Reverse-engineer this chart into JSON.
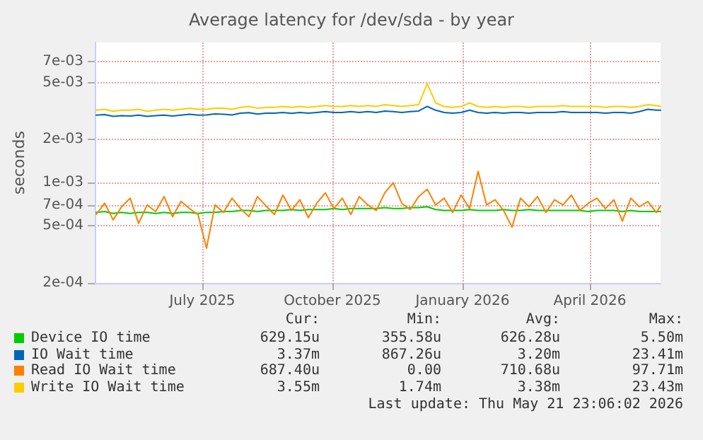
{
  "chart_data": {
    "type": "line",
    "title": "Average latency for /dev/sda - by year",
    "ylabel": "seconds",
    "x": [
      "2025-04-17",
      "2025-04-23",
      "2025-04-29",
      "2025-05-05",
      "2025-05-11",
      "2025-05-17",
      "2025-05-23",
      "2025-05-29",
      "2025-06-04",
      "2025-06-10",
      "2025-06-16",
      "2025-06-22",
      "2025-06-28",
      "2025-07-04",
      "2025-07-10",
      "2025-07-16",
      "2025-07-22",
      "2025-07-28",
      "2025-08-03",
      "2025-08-09",
      "2025-08-15",
      "2025-08-21",
      "2025-08-27",
      "2025-09-02",
      "2025-09-08",
      "2025-09-14",
      "2025-09-20",
      "2025-09-26",
      "2025-10-02",
      "2025-10-08",
      "2025-10-14",
      "2025-10-20",
      "2025-10-26",
      "2025-11-01",
      "2025-11-07",
      "2025-11-13",
      "2025-11-19",
      "2025-11-25",
      "2025-12-01",
      "2025-12-07",
      "2025-12-13",
      "2025-12-19",
      "2025-12-25",
      "2025-12-31",
      "2026-01-06",
      "2026-01-12",
      "2026-01-18",
      "2026-01-24",
      "2026-01-30",
      "2026-02-05",
      "2026-02-11",
      "2026-02-17",
      "2026-02-23",
      "2026-03-01",
      "2026-03-07",
      "2026-03-13",
      "2026-03-19",
      "2026-03-25",
      "2026-03-31",
      "2026-04-06",
      "2026-04-12",
      "2026-04-18",
      "2026-04-24",
      "2026-04-30",
      "2026-05-06",
      "2026-05-12",
      "2026-05-18",
      "2026-05-21"
    ],
    "series": [
      {
        "name": "Device IO time",
        "color": "#00cc00",
        "values": [
          0.00062,
          0.00063,
          0.00061,
          0.00062,
          0.00061,
          0.00062,
          0.00062,
          0.00061,
          0.00062,
          0.00061,
          0.00062,
          0.00062,
          0.00061,
          0.00062,
          0.00062,
          0.00063,
          0.00063,
          0.00064,
          0.00064,
          0.00063,
          0.00064,
          0.00064,
          0.00064,
          0.00065,
          0.00064,
          0.00065,
          0.00065,
          0.00065,
          0.00066,
          0.00065,
          0.00066,
          0.00066,
          0.00066,
          0.00066,
          0.00067,
          0.00066,
          0.00066,
          0.00067,
          0.00067,
          0.00068,
          0.00065,
          0.00064,
          0.00064,
          0.00064,
          0.00065,
          0.00064,
          0.00064,
          0.00064,
          0.00065,
          0.00064,
          0.00064,
          0.00065,
          0.00064,
          0.00064,
          0.00064,
          0.00064,
          0.00064,
          0.00064,
          0.00063,
          0.00064,
          0.00064,
          0.00064,
          0.00063,
          0.00064,
          0.00063,
          0.00063,
          0.00063,
          0.00063
        ]
      },
      {
        "name": "IO Wait time",
        "color": "#0066b3",
        "values": [
          0.00296,
          0.00298,
          0.0029,
          0.00293,
          0.00292,
          0.00296,
          0.0029,
          0.00293,
          0.00296,
          0.00292,
          0.00296,
          0.003,
          0.00296,
          0.00297,
          0.00302,
          0.003,
          0.00297,
          0.00305,
          0.00308,
          0.00301,
          0.00305,
          0.00305,
          0.00309,
          0.00304,
          0.00309,
          0.00305,
          0.00309,
          0.00313,
          0.00309,
          0.00309,
          0.00313,
          0.00309,
          0.00313,
          0.00309,
          0.00316,
          0.00313,
          0.00309,
          0.00313,
          0.00316,
          0.0034,
          0.0032,
          0.00309,
          0.00305,
          0.00309,
          0.0032,
          0.00309,
          0.00305,
          0.00309,
          0.00305,
          0.00309,
          0.00309,
          0.00305,
          0.00309,
          0.00309,
          0.00309,
          0.00313,
          0.00309,
          0.00309,
          0.00309,
          0.00309,
          0.00305,
          0.00309,
          0.00309,
          0.00305,
          0.00313,
          0.00325,
          0.0032,
          0.0032
        ]
      },
      {
        "name": "Read IO Wait time",
        "color": "#ff8000",
        "values": [
          0.0006,
          0.00072,
          0.00055,
          0.00068,
          0.00078,
          0.00052,
          0.0007,
          0.00063,
          0.0008,
          0.00058,
          0.00074,
          0.00066,
          0.0006,
          0.00035,
          0.0007,
          0.00062,
          0.00078,
          0.00066,
          0.00058,
          0.0008,
          0.00069,
          0.0006,
          0.00082,
          0.00064,
          0.00076,
          0.00057,
          0.00072,
          0.00085,
          0.00066,
          0.00078,
          0.0006,
          0.0008,
          0.0007,
          0.00064,
          0.00085,
          0.001,
          0.00072,
          0.00065,
          0.0008,
          0.0009,
          0.0007,
          0.00078,
          0.00062,
          0.00082,
          0.00066,
          0.0012,
          0.0007,
          0.00076,
          0.00064,
          0.00049,
          0.00078,
          0.00068,
          0.0008,
          0.00062,
          0.00076,
          0.0007,
          0.00082,
          0.00064,
          0.00072,
          0.00078,
          0.00066,
          0.00076,
          0.00054,
          0.00078,
          0.00068,
          0.00074,
          0.00062,
          0.00069
        ]
      },
      {
        "name": "Write IO Wait time",
        "color": "#ffcc00",
        "values": [
          0.0032,
          0.00325,
          0.00315,
          0.0032,
          0.0032,
          0.00325,
          0.00315,
          0.0032,
          0.00325,
          0.0032,
          0.00325,
          0.0033,
          0.00325,
          0.00325,
          0.0033,
          0.0033,
          0.00325,
          0.00335,
          0.0034,
          0.0033,
          0.00335,
          0.00335,
          0.0034,
          0.00335,
          0.0034,
          0.00335,
          0.0034,
          0.00345,
          0.0034,
          0.0034,
          0.00345,
          0.0034,
          0.00345,
          0.0034,
          0.0035,
          0.00345,
          0.0034,
          0.00345,
          0.0035,
          0.0049,
          0.0036,
          0.0034,
          0.00335,
          0.0034,
          0.0036,
          0.0034,
          0.00335,
          0.0034,
          0.00335,
          0.0034,
          0.0034,
          0.00335,
          0.0034,
          0.0034,
          0.0034,
          0.00345,
          0.0034,
          0.0034,
          0.0034,
          0.0034,
          0.00335,
          0.0034,
          0.0034,
          0.00335,
          0.0034,
          0.0035,
          0.00345,
          0.0034
        ]
      }
    ],
    "xlim": [
      "2025-04-16",
      "2026-05-21"
    ],
    "xticks": [
      {
        "value": "2025-07-01",
        "label": "July 2025"
      },
      {
        "value": "2025-10-01",
        "label": "October 2025"
      },
      {
        "value": "2026-01-01",
        "label": "January 2026"
      },
      {
        "value": "2026-04-01",
        "label": "April 2026"
      }
    ],
    "ylim": [
      0.0002,
      0.0095
    ],
    "yticks": [
      {
        "value": 0.0002,
        "label": "2e-04"
      },
      {
        "value": 0.0005,
        "label": "5e-04"
      },
      {
        "value": 0.0007,
        "label": "7e-04"
      },
      {
        "value": 0.001,
        "label": "1e-03"
      },
      {
        "value": 0.002,
        "label": "2e-03"
      },
      {
        "value": 0.005,
        "label": "5e-03"
      },
      {
        "value": 0.007,
        "label": "7e-03"
      }
    ],
    "log": "y",
    "grid": true,
    "legend": "bottom left",
    "marker": "none",
    "line_style": "solid",
    "annotations": [
      "Cur:",
      "Min:",
      "Avg:",
      "Max:",
      "629.15u",
      "355.58u",
      "626.28u",
      "5.50m",
      "3.37m",
      "867.26u",
      "3.20m",
      "23.41m",
      "687.40u",
      "0.00",
      "710.68u",
      "97.71m",
      "3.55m",
      "1.74m",
      "3.38m",
      "23.43m",
      "Last update: Thu May 21 23:06:02 2026"
    ]
  }
}
